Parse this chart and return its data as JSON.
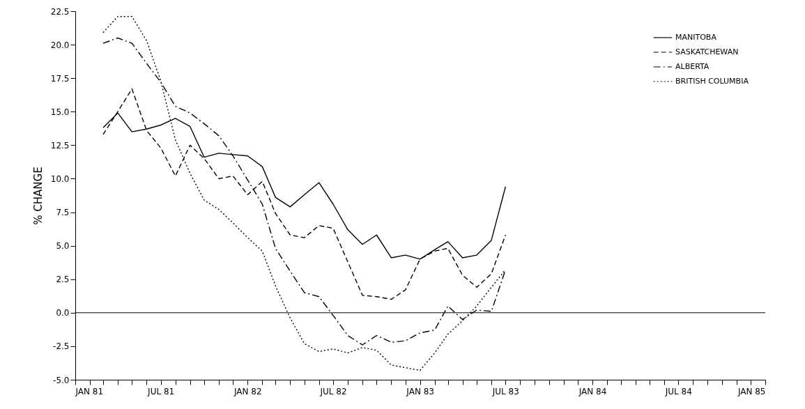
{
  "chart_data": {
    "type": "line",
    "ylabel": "% CHANGE",
    "x": [
      "1981-03",
      "1981-04",
      "1981-05",
      "1981-06",
      "1981-07",
      "1981-08",
      "1981-09",
      "1981-10",
      "1981-11",
      "1981-12",
      "1982-01",
      "1982-02",
      "1982-03",
      "1982-04",
      "1982-05",
      "1982-06",
      "1982-07",
      "1982-08",
      "1982-09",
      "1982-10",
      "1982-11",
      "1982-12",
      "1983-01",
      "1983-02",
      "1983-03",
      "1983-04",
      "1983-05",
      "1983-06",
      "1983-07"
    ],
    "series": [
      {
        "name": "MANITOBA",
        "color": "#000000",
        "line_style": "solid",
        "values": [
          13.8,
          14.9,
          13.5,
          13.7,
          14.0,
          14.5,
          13.9,
          11.6,
          11.9,
          11.8,
          11.7,
          10.9,
          8.6,
          7.9,
          8.8,
          9.7,
          8.1,
          6.2,
          5.1,
          5.8,
          4.1,
          4.3,
          4.0,
          4.7,
          5.3,
          4.1,
          4.3,
          5.4,
          9.4
        ]
      },
      {
        "name": "SASKATCHEWAN",
        "color": "#000000",
        "line_style": "dashed",
        "values": [
          13.3,
          15.0,
          16.7,
          13.6,
          12.3,
          10.2,
          12.5,
          11.5,
          10.0,
          10.2,
          8.8,
          9.8,
          7.4,
          5.8,
          5.6,
          6.5,
          6.3,
          3.8,
          1.3,
          1.2,
          1.0,
          1.7,
          4.0,
          4.6,
          4.8,
          2.8,
          1.9,
          2.9,
          5.8
        ]
      },
      {
        "name": "ALBERTA",
        "color": "#000000",
        "line_style": "dashdot",
        "values": [
          20.1,
          20.5,
          20.1,
          18.6,
          17.2,
          15.4,
          14.9,
          14.1,
          13.2,
          11.7,
          9.9,
          8.1,
          4.8,
          3.1,
          1.5,
          1.2,
          -0.2,
          -1.7,
          -2.4,
          -1.7,
          -2.2,
          -2.1,
          -1.5,
          -1.3,
          0.5,
          -0.5,
          0.2,
          0.1,
          3.2
        ]
      },
      {
        "name": "BRITISH COLUMBIA",
        "color": "#000000",
        "line_style": "dotted",
        "values": [
          20.9,
          22.1,
          22.1,
          20.3,
          17.3,
          12.9,
          10.4,
          8.4,
          7.7,
          6.7,
          5.6,
          4.6,
          2.0,
          -0.4,
          -2.3,
          -2.9,
          -2.7,
          -3.0,
          -2.6,
          -2.8,
          -3.9,
          -4.1,
          -4.3,
          -3.0,
          -1.6,
          -0.6,
          0.5,
          1.9,
          3.2
        ]
      }
    ],
    "xlim": [
      "1981-01",
      "1985-01"
    ],
    "xticks": [
      {
        "value": "1981-01",
        "label": "JAN 81"
      },
      {
        "value": "1981-02",
        "label": null
      },
      {
        "value": "1981-03",
        "label": null
      },
      {
        "value": "1981-04",
        "label": null
      },
      {
        "value": "1981-05",
        "label": null
      },
      {
        "value": "1981-06",
        "label": null
      },
      {
        "value": "1981-07",
        "label": "JUL 81"
      },
      {
        "value": "1981-08",
        "label": null
      },
      {
        "value": "1981-09",
        "label": null
      },
      {
        "value": "1981-10",
        "label": null
      },
      {
        "value": "1981-11",
        "label": null
      },
      {
        "value": "1981-12",
        "label": null
      },
      {
        "value": "1982-01",
        "label": "JAN 82"
      },
      {
        "value": "1982-02",
        "label": null
      },
      {
        "value": "1982-03",
        "label": null
      },
      {
        "value": "1982-04",
        "label": null
      },
      {
        "value": "1982-05",
        "label": null
      },
      {
        "value": "1982-06",
        "label": null
      },
      {
        "value": "1982-07",
        "label": "JUL 82"
      },
      {
        "value": "1982-08",
        "label": null
      },
      {
        "value": "1982-09",
        "label": null
      },
      {
        "value": "1982-10",
        "label": null
      },
      {
        "value": "1982-11",
        "label": null
      },
      {
        "value": "1982-12",
        "label": null
      },
      {
        "value": "1983-01",
        "label": "JAN 83"
      },
      {
        "value": "1983-02",
        "label": null
      },
      {
        "value": "1983-03",
        "label": null
      },
      {
        "value": "1983-04",
        "label": null
      },
      {
        "value": "1983-05",
        "label": null
      },
      {
        "value": "1983-06",
        "label": null
      },
      {
        "value": "1983-07",
        "label": "JUL 83"
      },
      {
        "value": "1983-08",
        "label": null
      },
      {
        "value": "1983-09",
        "label": null
      },
      {
        "value": "1983-10",
        "label": null
      },
      {
        "value": "1983-11",
        "label": null
      },
      {
        "value": "1983-12",
        "label": null
      },
      {
        "value": "1984-01",
        "label": "JAN 84"
      },
      {
        "value": "1984-02",
        "label": null
      },
      {
        "value": "1984-03",
        "label": null
      },
      {
        "value": "1984-04",
        "label": null
      },
      {
        "value": "1984-05",
        "label": null
      },
      {
        "value": "1984-06",
        "label": null
      },
      {
        "value": "1984-07",
        "label": "JUL 84"
      },
      {
        "value": "1984-08",
        "label": null
      },
      {
        "value": "1984-09",
        "label": null
      },
      {
        "value": "1984-10",
        "label": null
      },
      {
        "value": "1984-11",
        "label": null
      },
      {
        "value": "1984-12",
        "label": null
      },
      {
        "value": "1985-01",
        "label": "JAN 85"
      }
    ],
    "ylim": [
      -5,
      22.5
    ],
    "yticks": [
      {
        "value": -5,
        "label": "-5.0"
      },
      {
        "value": -2.5,
        "label": "-2.5"
      },
      {
        "value": 0,
        "label": "0.0"
      },
      {
        "value": 2.5,
        "label": "2.5"
      },
      {
        "value": 5,
        "label": "5.0"
      },
      {
        "value": 7.5,
        "label": "7.5"
      },
      {
        "value": 10,
        "label": "10.0"
      },
      {
        "value": 12.5,
        "label": "12.5"
      },
      {
        "value": 15,
        "label": "15.0"
      },
      {
        "value": 17.5,
        "label": "17.5"
      },
      {
        "value": 20,
        "label": "20.0"
      },
      {
        "value": 22.5,
        "label": "22.5"
      }
    ],
    "ref_lines": [
      {
        "axis": "y",
        "value": 0,
        "color": "#000000",
        "line_style": "solid"
      }
    ],
    "grid": false,
    "legend": "top right"
  }
}
